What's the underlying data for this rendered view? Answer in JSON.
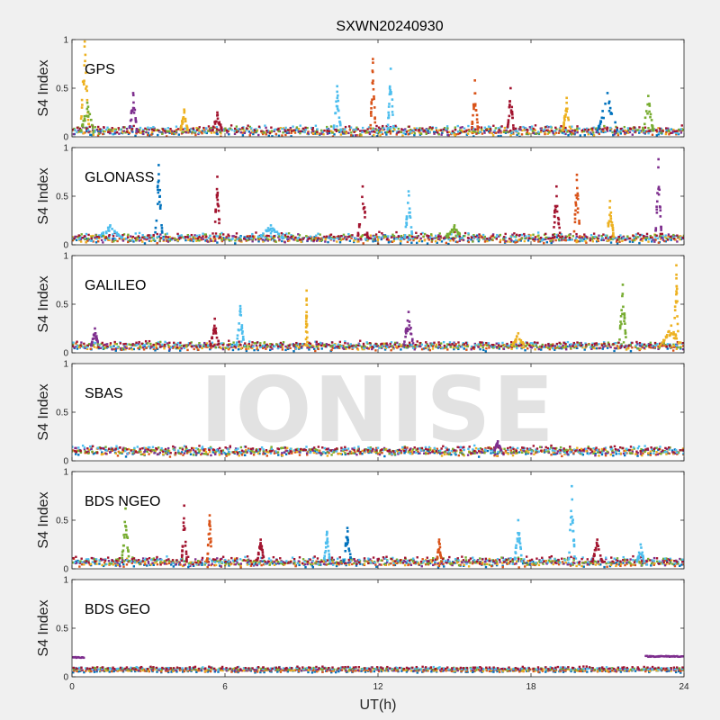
{
  "chart_data": {
    "type": "scatter",
    "title": "SXWN20240930",
    "xlabel": "UT(h)",
    "ylabel": "S4 Index",
    "xlim": [
      0,
      24
    ],
    "ylim": [
      0,
      1
    ],
    "xticks": [
      0,
      6,
      12,
      18,
      24
    ],
    "yticks": [
      0,
      0.5,
      1
    ],
    "watermark": "IONISE",
    "series_colors": [
      "#0072BD",
      "#D95319",
      "#EDB120",
      "#7E2F8E",
      "#77AC30",
      "#4DBEEE",
      "#A2142F"
    ],
    "panels": [
      {
        "label": "GPS",
        "baseline": 0.06,
        "noise": 0.03,
        "spikes": [
          {
            "x": 0.5,
            "peak": 0.98,
            "width": 0.35,
            "color": 2
          },
          {
            "x": 0.6,
            "peak": 0.35,
            "width": 0.5,
            "color": 4
          },
          {
            "x": 2.4,
            "peak": 0.45,
            "width": 0.3,
            "color": 3
          },
          {
            "x": 4.4,
            "peak": 0.28,
            "width": 0.3,
            "color": 2
          },
          {
            "x": 5.7,
            "peak": 0.25,
            "width": 0.4,
            "color": 6
          },
          {
            "x": 10.4,
            "peak": 0.52,
            "width": 0.3,
            "color": 5
          },
          {
            "x": 11.8,
            "peak": 0.8,
            "width": 0.2,
            "color": 1
          },
          {
            "x": 12.5,
            "peak": 0.7,
            "width": 0.25,
            "color": 5
          },
          {
            "x": 15.8,
            "peak": 0.58,
            "width": 0.25,
            "color": 1
          },
          {
            "x": 17.2,
            "peak": 0.5,
            "width": 0.25,
            "color": 6
          },
          {
            "x": 19.4,
            "peak": 0.4,
            "width": 0.3,
            "color": 2
          },
          {
            "x": 21.0,
            "peak": 0.45,
            "width": 0.8,
            "color": 0
          },
          {
            "x": 22.6,
            "peak": 0.42,
            "width": 0.4,
            "color": 4
          }
        ]
      },
      {
        "label": "GLONASS",
        "baseline": 0.07,
        "noise": 0.03,
        "spikes": [
          {
            "x": 1.5,
            "peak": 0.2,
            "width": 1.0,
            "color": 5
          },
          {
            "x": 3.4,
            "peak": 0.82,
            "width": 0.3,
            "color": 0
          },
          {
            "x": 5.7,
            "peak": 0.7,
            "width": 0.25,
            "color": 6
          },
          {
            "x": 7.8,
            "peak": 0.2,
            "width": 1.0,
            "color": 5
          },
          {
            "x": 11.4,
            "peak": 0.6,
            "width": 0.4,
            "color": 6
          },
          {
            "x": 13.2,
            "peak": 0.55,
            "width": 0.3,
            "color": 5
          },
          {
            "x": 15.0,
            "peak": 0.2,
            "width": 0.6,
            "color": 4
          },
          {
            "x": 19.0,
            "peak": 0.6,
            "width": 0.3,
            "color": 6
          },
          {
            "x": 19.8,
            "peak": 0.72,
            "width": 0.25,
            "color": 1
          },
          {
            "x": 21.1,
            "peak": 0.45,
            "width": 0.3,
            "color": 2
          },
          {
            "x": 23.0,
            "peak": 0.88,
            "width": 0.25,
            "color": 3
          }
        ]
      },
      {
        "label": "GALILEO",
        "baseline": 0.07,
        "noise": 0.025,
        "spikes": [
          {
            "x": 0.9,
            "peak": 0.25,
            "width": 0.3,
            "color": 3
          },
          {
            "x": 5.6,
            "peak": 0.35,
            "width": 0.35,
            "color": 6
          },
          {
            "x": 6.6,
            "peak": 0.48,
            "width": 0.3,
            "color": 5
          },
          {
            "x": 9.2,
            "peak": 0.64,
            "width": 0.06,
            "color": 2
          },
          {
            "x": 13.2,
            "peak": 0.42,
            "width": 0.4,
            "color": 3
          },
          {
            "x": 17.5,
            "peak": 0.2,
            "width": 0.5,
            "color": 2
          },
          {
            "x": 21.6,
            "peak": 0.7,
            "width": 0.3,
            "color": 4
          },
          {
            "x": 23.7,
            "peak": 0.9,
            "width": 0.2,
            "color": 2
          },
          {
            "x": 23.5,
            "peak": 0.28,
            "width": 0.9,
            "color": 2
          }
        ]
      },
      {
        "label": "SBAS",
        "baseline": 0.1,
        "noise": 0.03,
        "spikes": [
          {
            "x": 16.7,
            "peak": 0.2,
            "width": 0.3,
            "color": 3
          }
        ]
      },
      {
        "label": "BDS NGEO",
        "baseline": 0.07,
        "noise": 0.03,
        "spikes": [
          {
            "x": 2.1,
            "peak": 0.62,
            "width": 0.3,
            "color": 4
          },
          {
            "x": 4.4,
            "peak": 0.65,
            "width": 0.2,
            "color": 6
          },
          {
            "x": 5.4,
            "peak": 0.55,
            "width": 0.2,
            "color": 1
          },
          {
            "x": 7.4,
            "peak": 0.3,
            "width": 0.3,
            "color": 6
          },
          {
            "x": 10.0,
            "peak": 0.38,
            "width": 0.25,
            "color": 5
          },
          {
            "x": 10.8,
            "peak": 0.42,
            "width": 0.3,
            "color": 0
          },
          {
            "x": 14.4,
            "peak": 0.3,
            "width": 0.2,
            "color": 1
          },
          {
            "x": 17.5,
            "peak": 0.5,
            "width": 0.3,
            "color": 5
          },
          {
            "x": 19.6,
            "peak": 0.85,
            "width": 0.25,
            "color": 5
          },
          {
            "x": 20.6,
            "peak": 0.3,
            "width": 0.4,
            "color": 6
          },
          {
            "x": 22.3,
            "peak": 0.25,
            "width": 0.3,
            "color": 5
          }
        ]
      },
      {
        "label": "BDS GEO",
        "baseline": 0.075,
        "noise": 0.01,
        "spikes": [],
        "flat_segments": [
          {
            "x0": 0.0,
            "x1": 0.5,
            "y": 0.2,
            "color": 3
          },
          {
            "x0": 22.5,
            "x1": 24.0,
            "y": 0.21,
            "color": 3
          }
        ]
      }
    ]
  }
}
